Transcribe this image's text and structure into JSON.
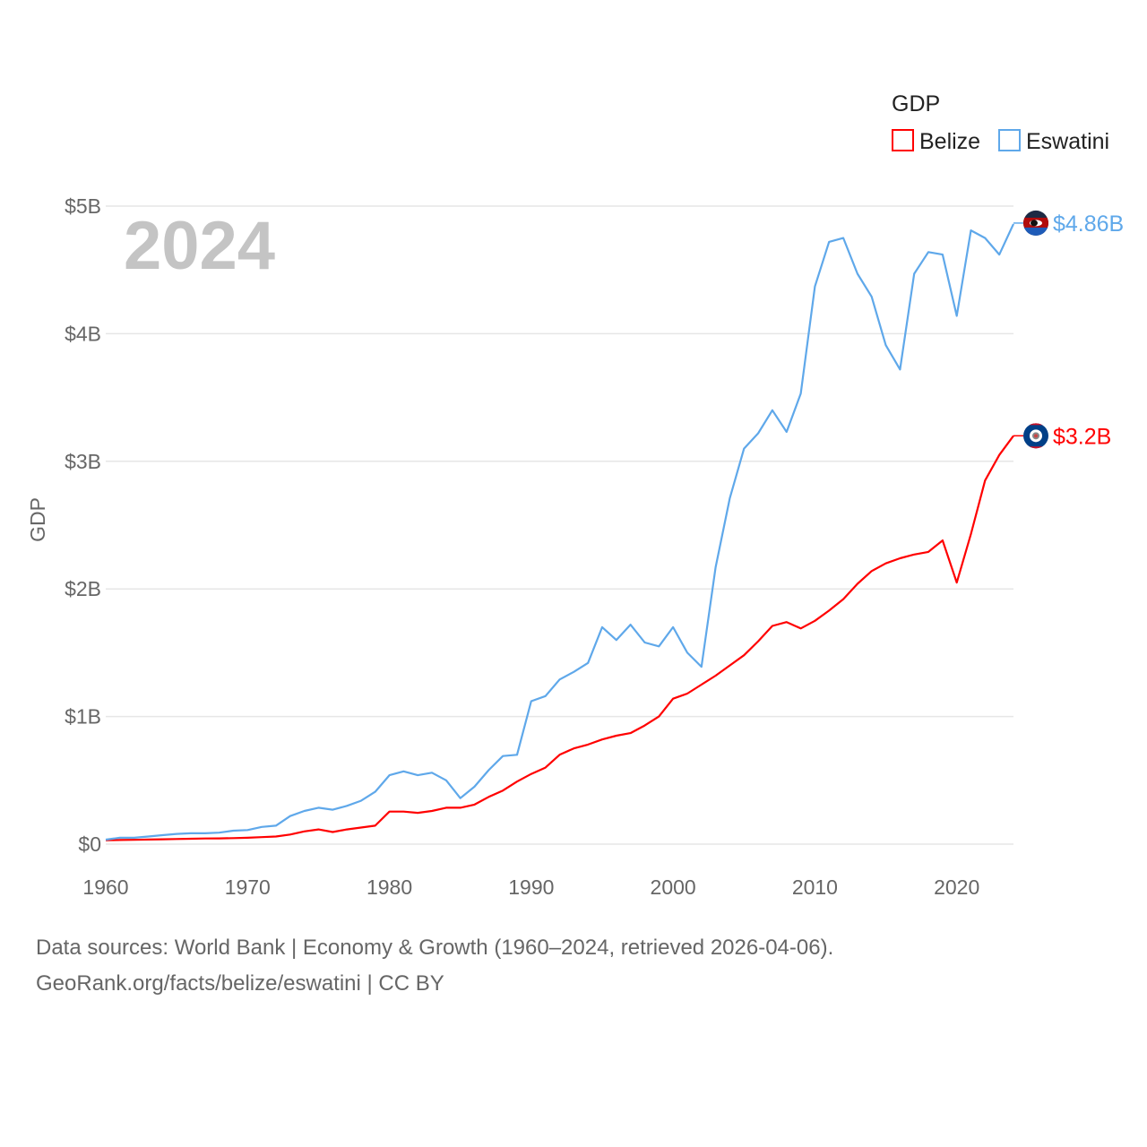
{
  "chart_data": {
    "type": "line",
    "title": "GDP",
    "year_label": "2024",
    "xlabel": "",
    "ylabel": "GDP",
    "xlim": [
      1960,
      2024
    ],
    "ylim": [
      0,
      5
    ],
    "y_unit": "billions USD",
    "grid": true,
    "legend_position": "top-right",
    "x_ticks": [
      1960,
      1970,
      1980,
      1990,
      2000,
      2010,
      2020
    ],
    "x_tick_labels": [
      "1960",
      "1970",
      "1980",
      "1990",
      "2000",
      "2010",
      "2020"
    ],
    "y_ticks": [
      0,
      1,
      2,
      3,
      4,
      5
    ],
    "y_tick_labels": [
      "$0",
      "$1B",
      "$2B",
      "$3B",
      "$4B",
      "$5B"
    ],
    "x": [
      1960,
      1961,
      1962,
      1963,
      1964,
      1965,
      1966,
      1967,
      1968,
      1969,
      1970,
      1971,
      1972,
      1973,
      1974,
      1975,
      1976,
      1977,
      1978,
      1979,
      1980,
      1981,
      1982,
      1983,
      1984,
      1985,
      1986,
      1987,
      1988,
      1989,
      1990,
      1991,
      1992,
      1993,
      1994,
      1995,
      1996,
      1997,
      1998,
      1999,
      2000,
      2001,
      2002,
      2003,
      2004,
      2005,
      2006,
      2007,
      2008,
      2009,
      2010,
      2011,
      2012,
      2013,
      2014,
      2015,
      2016,
      2017,
      2018,
      2019,
      2020,
      2021,
      2022,
      2023,
      2024
    ],
    "series": [
      {
        "name": "Belize",
        "color": "#ff0000",
        "end_label": "$3.2B",
        "values": [
          0.03,
          0.032,
          0.034,
          0.036,
          0.038,
          0.04,
          0.042,
          0.044,
          0.045,
          0.047,
          0.05,
          0.055,
          0.06,
          0.075,
          0.1,
          0.115,
          0.095,
          0.115,
          0.13,
          0.145,
          0.255,
          0.255,
          0.245,
          0.26,
          0.285,
          0.285,
          0.31,
          0.37,
          0.42,
          0.49,
          0.55,
          0.6,
          0.7,
          0.75,
          0.78,
          0.82,
          0.85,
          0.87,
          0.93,
          1.0,
          1.14,
          1.18,
          1.25,
          1.32,
          1.4,
          1.48,
          1.59,
          1.71,
          1.74,
          1.69,
          1.75,
          1.83,
          1.92,
          2.04,
          2.14,
          2.2,
          2.24,
          2.27,
          2.29,
          2.38,
          2.05,
          2.43,
          2.85,
          3.05,
          3.2
        ]
      },
      {
        "name": "Eswatini",
        "color": "#5fa8ea",
        "end_label": "$4.86B",
        "values": [
          0.035,
          0.05,
          0.05,
          0.06,
          0.07,
          0.08,
          0.085,
          0.085,
          0.09,
          0.105,
          0.11,
          0.135,
          0.145,
          0.22,
          0.26,
          0.285,
          0.27,
          0.3,
          0.34,
          0.41,
          0.54,
          0.57,
          0.54,
          0.56,
          0.5,
          0.36,
          0.45,
          0.58,
          0.69,
          0.7,
          1.12,
          1.16,
          1.29,
          1.35,
          1.42,
          1.7,
          1.6,
          1.72,
          1.58,
          1.55,
          1.7,
          1.5,
          1.39,
          2.17,
          2.71,
          3.1,
          3.22,
          3.4,
          3.23,
          3.53,
          4.37,
          4.72,
          4.75,
          4.47,
          4.29,
          3.91,
          3.72,
          4.47,
          4.64,
          4.62,
          4.14,
          4.81,
          4.75,
          4.62,
          4.86
        ]
      }
    ]
  },
  "footer": {
    "line1": "Data sources: World Bank | Economy & Growth (1960–2024, retrieved 2026-04-06).",
    "line2": "GeoRank.org/facts/belize/eswatini | CC BY"
  }
}
